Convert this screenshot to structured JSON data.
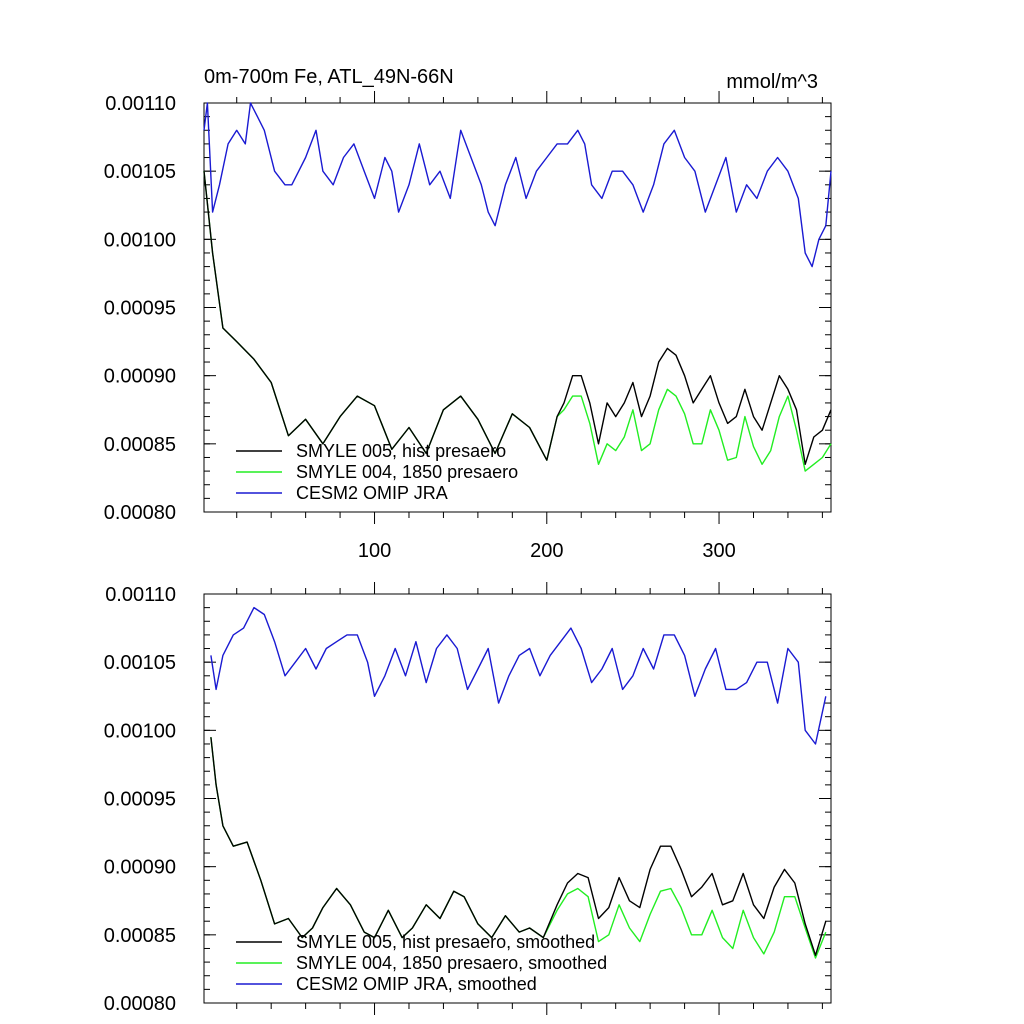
{
  "chart_data": [
    {
      "type": "line",
      "title": "0m-700m Fe, ATL_49N-66N",
      "units": "mmol/m^3",
      "xlim": [
        1,
        365
      ],
      "ylim": [
        0.0008,
        0.0011
      ],
      "x_major_ticks": [
        100,
        200,
        300
      ],
      "y_tick_values": [
        0.0008,
        0.00085,
        0.0009,
        0.00095,
        0.001,
        0.00105,
        0.0011
      ],
      "y_tick_labels": [
        "0.00080",
        "0.00085",
        "0.00090",
        "0.00095",
        "0.00100",
        "0.00105",
        "0.00110"
      ],
      "x_tick_labels": [
        "100",
        "200",
        "300"
      ],
      "legend_position": "bottom-left",
      "series": [
        {
          "name": "SMYLE 005, hist presaero",
          "color": "#000000",
          "x": [
            1,
            6,
            12,
            20,
            30,
            40,
            50,
            60,
            70,
            80,
            90,
            100,
            110,
            120,
            130,
            140,
            150,
            160,
            170,
            180,
            190,
            200,
            206,
            210,
            215,
            220,
            225,
            230,
            235,
            240,
            245,
            250,
            255,
            260,
            265,
            270,
            275,
            280,
            285,
            290,
            295,
            300,
            305,
            310,
            315,
            320,
            325,
            330,
            335,
            340,
            345,
            350,
            355,
            360,
            365
          ],
          "values": [
            0.00105,
            0.00099,
            0.000935,
            0.000925,
            0.000912,
            0.000895,
            0.000856,
            0.000868,
            0.00085,
            0.00087,
            0.000885,
            0.000878,
            0.000846,
            0.000862,
            0.000843,
            0.000875,
            0.000885,
            0.000868,
            0.000843,
            0.000872,
            0.000862,
            0.000838,
            0.00087,
            0.00088,
            0.0009,
            0.0009,
            0.00088,
            0.00085,
            0.00088,
            0.00087,
            0.00088,
            0.000895,
            0.00087,
            0.000885,
            0.00091,
            0.00092,
            0.000915,
            0.0009,
            0.00088,
            0.00089,
            0.0009,
            0.00088,
            0.000865,
            0.00087,
            0.00089,
            0.00087,
            0.00086,
            0.00088,
            0.0009,
            0.00089,
            0.000875,
            0.000835,
            0.000855,
            0.00086,
            0.000875
          ]
        },
        {
          "name": "SMYLE 004, 1850 presaero",
          "color": "#22ee22",
          "x": [
            1,
            6,
            12,
            20,
            30,
            40,
            50,
            60,
            70,
            80,
            90,
            100,
            110,
            120,
            130,
            140,
            150,
            160,
            170,
            180,
            190,
            200,
            206,
            210,
            215,
            220,
            225,
            230,
            235,
            240,
            245,
            250,
            255,
            260,
            265,
            270,
            275,
            280,
            285,
            290,
            295,
            300,
            305,
            310,
            315,
            320,
            325,
            330,
            335,
            340,
            345,
            350,
            355,
            360,
            365
          ],
          "values": [
            0.00105,
            0.00099,
            0.000935,
            0.000925,
            0.000912,
            0.000895,
            0.000856,
            0.000868,
            0.00085,
            0.00087,
            0.000885,
            0.000878,
            0.000846,
            0.000862,
            0.000843,
            0.000875,
            0.000885,
            0.000868,
            0.000843,
            0.000872,
            0.000862,
            0.000838,
            0.00087,
            0.000875,
            0.000885,
            0.000885,
            0.000865,
            0.000835,
            0.00085,
            0.000845,
            0.000855,
            0.000875,
            0.000845,
            0.00085,
            0.000875,
            0.00089,
            0.000885,
            0.000872,
            0.00085,
            0.00085,
            0.000875,
            0.00086,
            0.000838,
            0.00084,
            0.00087,
            0.000848,
            0.000835,
            0.000845,
            0.00087,
            0.000885,
            0.00086,
            0.00083,
            0.000835,
            0.00084,
            0.00085
          ]
        },
        {
          "name": "CESM2 OMIP JRA",
          "color": "#1a1ad2",
          "x": [
            1,
            3,
            6,
            10,
            15,
            20,
            25,
            28,
            32,
            36,
            42,
            48,
            52,
            56,
            60,
            66,
            70,
            76,
            82,
            88,
            94,
            100,
            106,
            110,
            114,
            120,
            126,
            132,
            138,
            144,
            150,
            156,
            162,
            166,
            170,
            176,
            182,
            188,
            194,
            200,
            206,
            212,
            218,
            222,
            226,
            232,
            238,
            244,
            250,
            256,
            262,
            268,
            274,
            280,
            286,
            292,
            298,
            304,
            310,
            316,
            322,
            328,
            334,
            340,
            346,
            350,
            354,
            358,
            362,
            365
          ],
          "values": [
            0.00108,
            0.0011,
            0.00102,
            0.00104,
            0.00107,
            0.00108,
            0.00107,
            0.0011,
            0.00109,
            0.00108,
            0.00105,
            0.00104,
            0.00104,
            0.00105,
            0.00106,
            0.00108,
            0.00105,
            0.00104,
            0.00106,
            0.00107,
            0.00105,
            0.00103,
            0.00106,
            0.00105,
            0.00102,
            0.00104,
            0.00107,
            0.00104,
            0.00105,
            0.00103,
            0.00108,
            0.00106,
            0.00104,
            0.00102,
            0.00101,
            0.00104,
            0.00106,
            0.00103,
            0.00105,
            0.00106,
            0.00107,
            0.00107,
            0.00108,
            0.00107,
            0.00104,
            0.00103,
            0.00105,
            0.00105,
            0.00104,
            0.00102,
            0.00104,
            0.00107,
            0.00108,
            0.00106,
            0.00105,
            0.00102,
            0.00104,
            0.00106,
            0.00102,
            0.00104,
            0.00103,
            0.00105,
            0.00106,
            0.00105,
            0.00103,
            0.00099,
            0.00098,
            0.001,
            0.00101,
            0.00105
          ]
        }
      ]
    },
    {
      "type": "line",
      "title": "",
      "units": "",
      "xlim": [
        1,
        365
      ],
      "ylim": [
        0.0008,
        0.0011
      ],
      "x_major_ticks": [
        100,
        200,
        300
      ],
      "y_tick_values": [
        0.0008,
        0.00085,
        0.0009,
        0.00095,
        0.001,
        0.00105,
        0.0011
      ],
      "y_tick_labels": [
        "0.00080",
        "0.00085",
        "0.00090",
        "0.00095",
        "0.00100",
        "0.00105",
        "0.00110"
      ],
      "x_tick_labels": [],
      "legend_position": "bottom-left",
      "series": [
        {
          "name": "SMYLE 005, hist presaero, smoothed",
          "color": "#000000",
          "x": [
            5,
            8,
            12,
            18,
            26,
            34,
            42,
            50,
            58,
            64,
            70,
            78,
            86,
            94,
            100,
            108,
            116,
            122,
            130,
            138,
            146,
            152,
            160,
            168,
            176,
            184,
            190,
            198,
            206,
            212,
            218,
            224,
            230,
            236,
            242,
            248,
            254,
            260,
            266,
            272,
            278,
            284,
            290,
            296,
            302,
            308,
            314,
            320,
            326,
            332,
            338,
            344,
            350,
            356,
            362
          ],
          "values": [
            0.000995,
            0.00096,
            0.00093,
            0.000915,
            0.000918,
            0.00089,
            0.000858,
            0.000862,
            0.000848,
            0.000855,
            0.00087,
            0.000884,
            0.000872,
            0.000852,
            0.000848,
            0.000868,
            0.000848,
            0.000855,
            0.000872,
            0.000862,
            0.000882,
            0.000878,
            0.000858,
            0.000848,
            0.000864,
            0.000852,
            0.000855,
            0.000848,
            0.000872,
            0.000888,
            0.000895,
            0.000892,
            0.000862,
            0.00087,
            0.000892,
            0.000875,
            0.00087,
            0.000898,
            0.000915,
            0.000915,
            0.000898,
            0.000878,
            0.000885,
            0.000895,
            0.000872,
            0.000875,
            0.000895,
            0.000872,
            0.000862,
            0.000885,
            0.000898,
            0.000888,
            0.000858,
            0.000835,
            0.00086
          ]
        },
        {
          "name": "SMYLE 004, 1850 presaero, smoothed",
          "color": "#22ee22",
          "x": [
            5,
            8,
            12,
            18,
            26,
            34,
            42,
            50,
            58,
            64,
            70,
            78,
            86,
            94,
            100,
            108,
            116,
            122,
            130,
            138,
            146,
            152,
            160,
            168,
            176,
            184,
            190,
            198,
            206,
            212,
            218,
            224,
            230,
            236,
            242,
            248,
            254,
            260,
            266,
            272,
            278,
            284,
            290,
            296,
            302,
            308,
            314,
            320,
            326,
            332,
            338,
            344,
            350,
            356,
            362
          ],
          "values": [
            0.000995,
            0.00096,
            0.00093,
            0.000915,
            0.000918,
            0.00089,
            0.000858,
            0.000862,
            0.000848,
            0.000855,
            0.00087,
            0.000884,
            0.000872,
            0.000852,
            0.000848,
            0.000868,
            0.000848,
            0.000855,
            0.000872,
            0.000862,
            0.000882,
            0.000878,
            0.000858,
            0.000848,
            0.000864,
            0.000852,
            0.000855,
            0.000848,
            0.000868,
            0.00088,
            0.000884,
            0.000878,
            0.000845,
            0.00085,
            0.000872,
            0.000855,
            0.000845,
            0.000865,
            0.000882,
            0.000884,
            0.00087,
            0.00085,
            0.00085,
            0.000868,
            0.000848,
            0.00084,
            0.000868,
            0.000848,
            0.000836,
            0.000852,
            0.000878,
            0.000878,
            0.000855,
            0.000833,
            0.000852
          ]
        },
        {
          "name": "CESM2 OMIP JRA, smoothed",
          "color": "#1a1ad2",
          "x": [
            5,
            8,
            12,
            18,
            24,
            30,
            36,
            42,
            48,
            54,
            60,
            66,
            72,
            78,
            84,
            90,
            96,
            100,
            106,
            112,
            118,
            124,
            130,
            136,
            142,
            148,
            154,
            160,
            166,
            172,
            178,
            184,
            190,
            196,
            202,
            208,
            214,
            220,
            226,
            232,
            238,
            244,
            250,
            256,
            262,
            268,
            274,
            280,
            286,
            292,
            298,
            304,
            310,
            316,
            322,
            328,
            334,
            340,
            346,
            350,
            356,
            362
          ],
          "values": [
            0.001055,
            0.00103,
            0.001055,
            0.00107,
            0.001075,
            0.00109,
            0.001085,
            0.001065,
            0.00104,
            0.00105,
            0.00106,
            0.001045,
            0.00106,
            0.001065,
            0.00107,
            0.00107,
            0.00105,
            0.001025,
            0.00104,
            0.00106,
            0.00104,
            0.001065,
            0.001035,
            0.00106,
            0.00107,
            0.00106,
            0.00103,
            0.001045,
            0.00106,
            0.00102,
            0.00104,
            0.001055,
            0.00106,
            0.00104,
            0.001055,
            0.001065,
            0.001075,
            0.00106,
            0.001035,
            0.001045,
            0.00106,
            0.00103,
            0.00104,
            0.00106,
            0.001045,
            0.00107,
            0.00107,
            0.001055,
            0.001025,
            0.001045,
            0.00106,
            0.00103,
            0.00103,
            0.001035,
            0.00105,
            0.00105,
            0.00102,
            0.00106,
            0.00105,
            0.001,
            0.00099,
            0.001025
          ]
        }
      ]
    }
  ]
}
